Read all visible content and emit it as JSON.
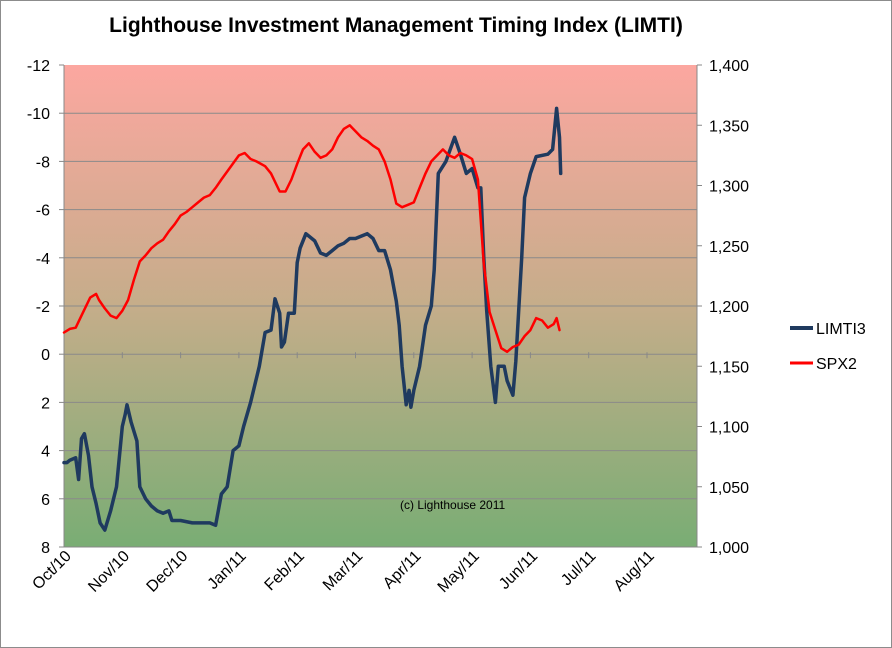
{
  "chart_data": {
    "type": "line",
    "title": "Lighthouse Investment Management Timing Index (LIMTI)",
    "annotation": "(c) Lighthouse 2011",
    "x_labels": [
      "Oct/10",
      "Nov/10",
      "Dec/10",
      "Jan/11",
      "Feb/11",
      "Mar/11",
      "Apr/11",
      "May/11",
      "Jun/11",
      "Jul/11",
      "Aug/11"
    ],
    "left_axis": {
      "ylim": [
        8,
        -12
      ],
      "reversed": true,
      "ticks": [
        "-12",
        "-10",
        "-8",
        "-6",
        "-4",
        "-2",
        "0",
        "2",
        "4",
        "6",
        "8"
      ]
    },
    "right_axis": {
      "ylim": [
        1000,
        1400
      ],
      "ticks": [
        "1,000",
        "1,050",
        "1,100",
        "1,150",
        "1,200",
        "1,250",
        "1,300",
        "1,350",
        "1,400"
      ]
    },
    "grid": true,
    "legend_position": "right",
    "background": "gradient red (top) to green (bottom)",
    "series": [
      {
        "name": "LIMTI3",
        "axis": "left",
        "color": "#1f3a5f",
        "points": [
          [
            0,
            4.5
          ],
          [
            0.05,
            4.5
          ],
          [
            0.1,
            4.4
          ],
          [
            0.2,
            4.3
          ],
          [
            0.25,
            5.2
          ],
          [
            0.3,
            3.5
          ],
          [
            0.35,
            3.3
          ],
          [
            0.42,
            4.2
          ],
          [
            0.48,
            5.5
          ],
          [
            0.55,
            6.2
          ],
          [
            0.62,
            7.0
          ],
          [
            0.7,
            7.3
          ],
          [
            0.8,
            6.5
          ],
          [
            0.9,
            5.5
          ],
          [
            1.0,
            3.0
          ],
          [
            1.05,
            2.5
          ],
          [
            1.08,
            2.1
          ],
          [
            1.15,
            2.8
          ],
          [
            1.25,
            3.6
          ],
          [
            1.3,
            5.5
          ],
          [
            1.4,
            6.0
          ],
          [
            1.5,
            6.3
          ],
          [
            1.6,
            6.5
          ],
          [
            1.7,
            6.6
          ],
          [
            1.8,
            6.5
          ],
          [
            1.85,
            6.9
          ],
          [
            2.0,
            6.9
          ],
          [
            2.2,
            7.0
          ],
          [
            2.5,
            7.0
          ],
          [
            2.6,
            7.1
          ],
          [
            2.7,
            5.8
          ],
          [
            2.8,
            5.5
          ],
          [
            2.9,
            4.0
          ],
          [
            3.0,
            3.8
          ],
          [
            3.08,
            3.0
          ],
          [
            3.2,
            2.0
          ],
          [
            3.35,
            0.5
          ],
          [
            3.45,
            -0.9
          ],
          [
            3.55,
            -1.0
          ],
          [
            3.62,
            -2.3
          ],
          [
            3.7,
            -1.7
          ],
          [
            3.73,
            -0.3
          ],
          [
            3.78,
            -0.5
          ],
          [
            3.85,
            -1.7
          ],
          [
            3.95,
            -1.7
          ],
          [
            4.0,
            -3.8
          ],
          [
            4.05,
            -4.4
          ],
          [
            4.15,
            -5.0
          ],
          [
            4.2,
            -4.9
          ],
          [
            4.3,
            -4.7
          ],
          [
            4.4,
            -4.2
          ],
          [
            4.5,
            -4.1
          ],
          [
            4.6,
            -4.3
          ],
          [
            4.7,
            -4.5
          ],
          [
            4.8,
            -4.6
          ],
          [
            4.9,
            -4.8
          ],
          [
            5.0,
            -4.8
          ],
          [
            5.1,
            -4.9
          ],
          [
            5.2,
            -5.0
          ],
          [
            5.3,
            -4.8
          ],
          [
            5.4,
            -4.3
          ],
          [
            5.5,
            -4.3
          ],
          [
            5.6,
            -3.5
          ],
          [
            5.7,
            -2.2
          ],
          [
            5.75,
            -1.2
          ],
          [
            5.8,
            0.5
          ],
          [
            5.87,
            2.1
          ],
          [
            5.92,
            1.5
          ],
          [
            5.95,
            2.2
          ],
          [
            6.0,
            1.5
          ],
          [
            6.1,
            0.5
          ],
          [
            6.2,
            -1.2
          ],
          [
            6.3,
            -2.0
          ],
          [
            6.35,
            -3.5
          ],
          [
            6.42,
            -7.5
          ],
          [
            6.55,
            -8.0
          ],
          [
            6.7,
            -9.0
          ],
          [
            6.8,
            -8.3
          ],
          [
            6.9,
            -7.5
          ],
          [
            7.0,
            -7.7
          ],
          [
            7.1,
            -6.9
          ],
          [
            7.15,
            -6.9
          ],
          [
            7.2,
            -4.0
          ],
          [
            7.25,
            -1.8
          ],
          [
            7.32,
            0.5
          ],
          [
            7.4,
            2.0
          ],
          [
            7.45,
            0.5
          ],
          [
            7.55,
            0.5
          ],
          [
            7.6,
            1.1
          ],
          [
            7.7,
            1.7
          ],
          [
            7.75,
            0.3
          ],
          [
            7.85,
            -4.0
          ],
          [
            7.9,
            -6.5
          ],
          [
            8.0,
            -7.5
          ],
          [
            8.1,
            -8.2
          ],
          [
            8.3,
            -8.3
          ],
          [
            8.38,
            -8.5
          ],
          [
            8.45,
            -10.2
          ],
          [
            8.5,
            -9.0
          ],
          [
            8.52,
            -7.5
          ]
        ]
      },
      {
        "name": "SPX2",
        "axis": "right",
        "color": "#ff0000",
        "points": [
          [
            0,
            1178
          ],
          [
            0.1,
            1181
          ],
          [
            0.2,
            1182
          ],
          [
            0.3,
            1192
          ],
          [
            0.45,
            1207
          ],
          [
            0.55,
            1210
          ],
          [
            0.6,
            1205
          ],
          [
            0.7,
            1198
          ],
          [
            0.8,
            1192
          ],
          [
            0.9,
            1190
          ],
          [
            1.0,
            1196
          ],
          [
            1.1,
            1205
          ],
          [
            1.2,
            1222
          ],
          [
            1.3,
            1237
          ],
          [
            1.4,
            1242
          ],
          [
            1.5,
            1248
          ],
          [
            1.6,
            1252
          ],
          [
            1.7,
            1255
          ],
          [
            1.8,
            1262
          ],
          [
            1.9,
            1268
          ],
          [
            2.0,
            1275
          ],
          [
            2.1,
            1278
          ],
          [
            2.2,
            1282
          ],
          [
            2.3,
            1286
          ],
          [
            2.4,
            1290
          ],
          [
            2.5,
            1292
          ],
          [
            2.6,
            1298
          ],
          [
            2.7,
            1305
          ],
          [
            2.85,
            1315
          ],
          [
            3.0,
            1325
          ],
          [
            3.1,
            1327
          ],
          [
            3.2,
            1322
          ],
          [
            3.3,
            1320
          ],
          [
            3.45,
            1316
          ],
          [
            3.55,
            1310
          ],
          [
            3.7,
            1295
          ],
          [
            3.8,
            1295
          ],
          [
            3.9,
            1305
          ],
          [
            4.0,
            1318
          ],
          [
            4.1,
            1330
          ],
          [
            4.2,
            1335
          ],
          [
            4.3,
            1328
          ],
          [
            4.4,
            1323
          ],
          [
            4.5,
            1325
          ],
          [
            4.6,
            1330
          ],
          [
            4.7,
            1340
          ],
          [
            4.8,
            1347
          ],
          [
            4.9,
            1350
          ],
          [
            5.0,
            1345
          ],
          [
            5.1,
            1340
          ],
          [
            5.2,
            1337
          ],
          [
            5.3,
            1333
          ],
          [
            5.4,
            1330
          ],
          [
            5.5,
            1320
          ],
          [
            5.6,
            1305
          ],
          [
            5.7,
            1285
          ],
          [
            5.8,
            1282
          ],
          [
            5.9,
            1284
          ],
          [
            6.0,
            1286
          ],
          [
            6.1,
            1298
          ],
          [
            6.2,
            1310
          ],
          [
            6.3,
            1320
          ],
          [
            6.4,
            1325
          ],
          [
            6.5,
            1330
          ],
          [
            6.6,
            1325
          ],
          [
            6.7,
            1323
          ],
          [
            6.8,
            1327
          ],
          [
            6.9,
            1325
          ],
          [
            7.0,
            1322
          ],
          [
            7.1,
            1305
          ],
          [
            7.2,
            1235
          ],
          [
            7.3,
            1195
          ],
          [
            7.4,
            1180
          ],
          [
            7.5,
            1165
          ],
          [
            7.6,
            1162
          ],
          [
            7.7,
            1166
          ],
          [
            7.8,
            1168
          ],
          [
            7.9,
            1175
          ],
          [
            8.0,
            1180
          ],
          [
            8.1,
            1190
          ],
          [
            8.2,
            1188
          ],
          [
            8.3,
            1182
          ],
          [
            8.4,
            1185
          ],
          [
            8.45,
            1190
          ],
          [
            8.5,
            1180
          ]
        ]
      }
    ]
  }
}
